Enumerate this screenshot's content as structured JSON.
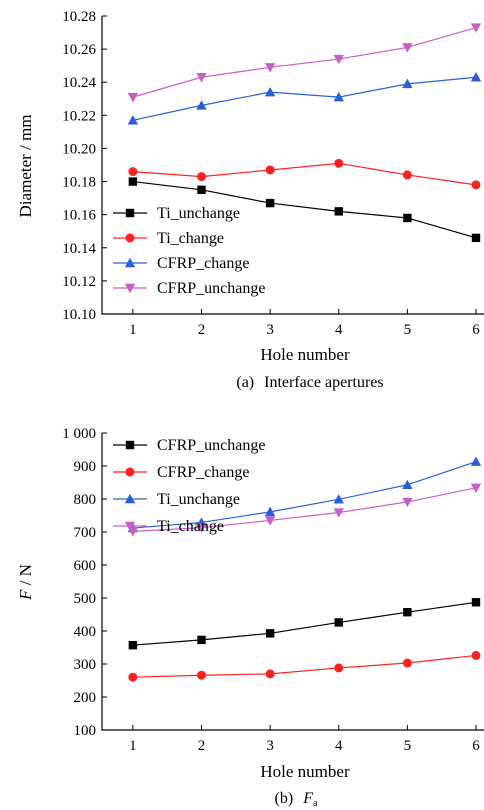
{
  "chart_data": [
    {
      "type": "line",
      "panel": "a",
      "caption_prefix": "(a)",
      "caption_text": "Interface apertures",
      "xlabel": "Hole number",
      "ylabel": "Diameter / mm",
      "x": [
        1,
        2,
        3,
        4,
        5,
        6
      ],
      "xticks": [
        "1",
        "2",
        "3",
        "4",
        "5",
        "6"
      ],
      "ylim": [
        10.1,
        10.28
      ],
      "yticks": [
        10.1,
        10.12,
        10.14,
        10.16,
        10.18,
        10.2,
        10.22,
        10.24,
        10.26,
        10.28
      ],
      "ytick_labels": [
        "10.10",
        "10.12",
        "10.14",
        "10.16",
        "10.18",
        "10.20",
        "10.22",
        "10.24",
        "10.26",
        "10.28"
      ],
      "legend_position": "lower-left",
      "grid": false,
      "series": [
        {
          "name": "Ti_unchange",
          "color": "#000000",
          "marker": "square",
          "values": [
            10.18,
            10.175,
            10.167,
            10.162,
            10.158,
            10.146
          ]
        },
        {
          "name": "Ti_change",
          "color": "#ff2020",
          "marker": "circle",
          "values": [
            10.186,
            10.183,
            10.187,
            10.191,
            10.184,
            10.178
          ]
        },
        {
          "name": "CFRP_change",
          "color": "#2b5fd9",
          "marker": "triangle-up",
          "values": [
            10.217,
            10.226,
            10.234,
            10.231,
            10.239,
            10.243
          ]
        },
        {
          "name": "CFRP_unchange",
          "color": "#c660c6",
          "marker": "triangle-down",
          "values": [
            10.231,
            10.243,
            10.249,
            10.254,
            10.261,
            10.273
          ]
        }
      ]
    },
    {
      "type": "line",
      "panel": "b",
      "caption_prefix": "(b)",
      "caption_var": "F",
      "caption_sub": "a",
      "xlabel": "Hole number",
      "ylabel_var": "F",
      "ylabel_unit": " / N",
      "x": [
        1,
        2,
        3,
        4,
        5,
        6
      ],
      "xticks": [
        "1",
        "2",
        "3",
        "4",
        "5",
        "6"
      ],
      "ylim": [
        100,
        1000
      ],
      "yticks": [
        100,
        200,
        300,
        400,
        500,
        600,
        700,
        800,
        900,
        1000
      ],
      "ytick_labels": [
        "100",
        "200",
        "300",
        "400",
        "500",
        "600",
        "700",
        "800",
        "900",
        "1 000"
      ],
      "legend_position": "top-left",
      "grid": false,
      "series": [
        {
          "name": "CFRP_unchange",
          "color": "#000000",
          "marker": "square",
          "values": [
            357,
            373,
            393,
            426,
            457,
            487
          ]
        },
        {
          "name": "CFRP_change",
          "color": "#ff2020",
          "marker": "circle",
          "values": [
            260,
            266,
            270,
            288,
            303,
            326
          ]
        },
        {
          "name": "Ti_unchange",
          "color": "#2b5fd9",
          "marker": "triangle-up",
          "values": [
            712,
            729,
            761,
            799,
            843,
            913
          ]
        },
        {
          "name": "Ti_change",
          "color": "#c660c6",
          "marker": "triangle-down",
          "values": [
            702,
            713,
            735,
            759,
            791,
            834
          ]
        }
      ]
    }
  ]
}
